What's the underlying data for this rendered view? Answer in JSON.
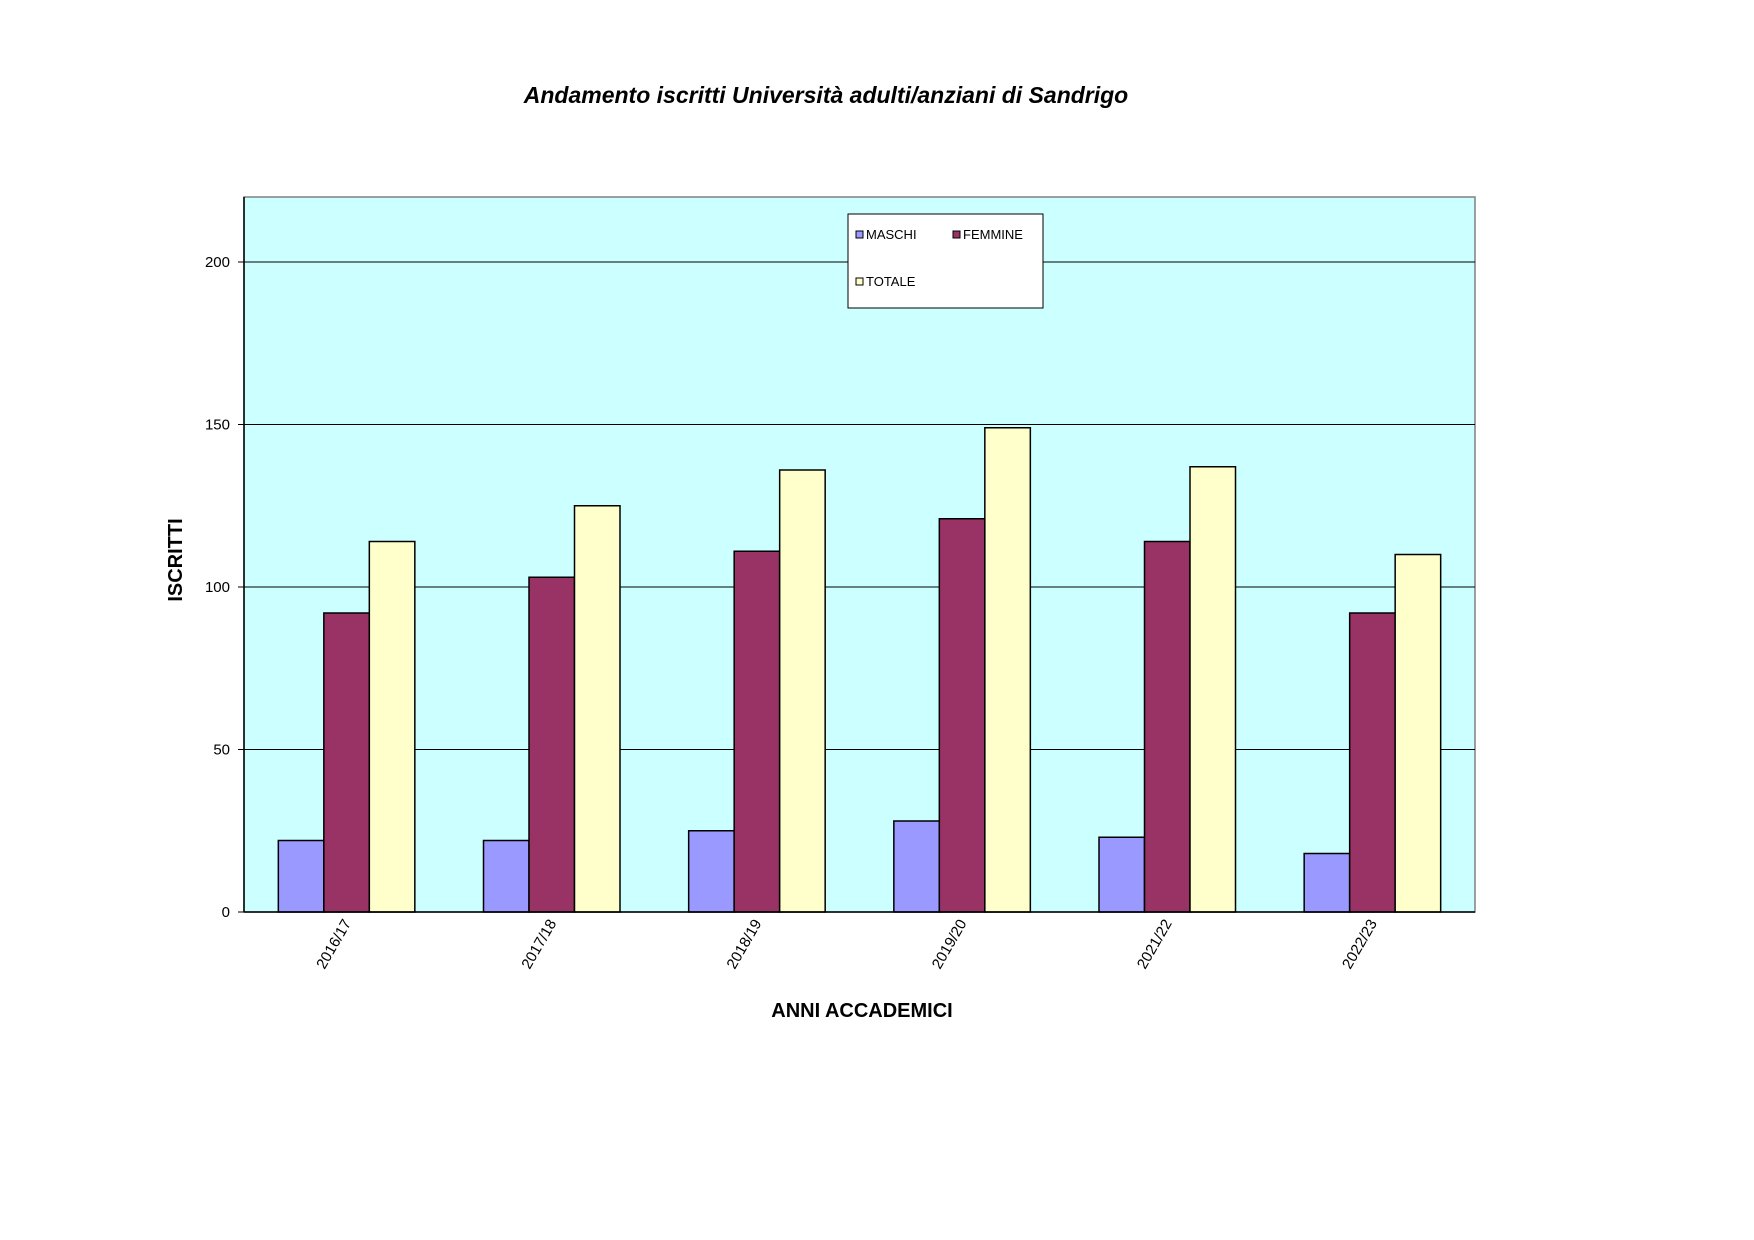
{
  "chart_data": {
    "type": "bar",
    "title": "Andamento iscritti Università adulti/anziani di Sandrigo",
    "xlabel": "ANNI ACCADEMICI",
    "ylabel": "ISCRITTI",
    "ylim": [
      0,
      220
    ],
    "yticks": [
      0,
      50,
      100,
      150,
      200
    ],
    "grid": true,
    "legend_position": "top-center",
    "plot_background": "#ccffff",
    "categories": [
      "2016/17",
      "2017/18",
      "2018/19",
      "2019/20",
      "2021/22",
      "2022/23"
    ],
    "series": [
      {
        "name": "MASCHI",
        "color": "#9999ff",
        "values": [
          22,
          22,
          25,
          28,
          23,
          18
        ]
      },
      {
        "name": "FEMMINE",
        "color": "#993366",
        "values": [
          92,
          103,
          111,
          121,
          114,
          92
        ]
      },
      {
        "name": "TOTALE",
        "color": "#ffffcc",
        "values": [
          114,
          125,
          136,
          149,
          137,
          110
        ]
      }
    ]
  }
}
